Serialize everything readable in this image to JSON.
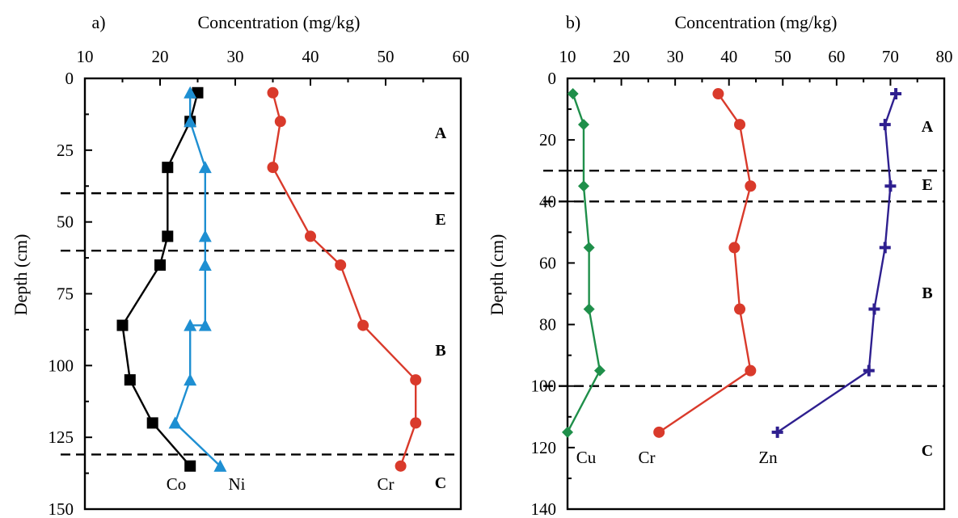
{
  "chart_data": [
    {
      "type": "line",
      "panel_label": "a)",
      "xlabel": "Concentration (mg/kg)",
      "ylabel": "Depth (cm)",
      "xlim": [
        10,
        60
      ],
      "ylim": [
        0,
        150
      ],
      "x_ticks": [
        "10",
        "20",
        "30",
        "40",
        "50",
        "60"
      ],
      "y_ticks": [
        "0",
        "25",
        "50",
        "75",
        "100",
        "125",
        "150"
      ],
      "x_axis_position": "top",
      "y_inverted": true,
      "grid": false,
      "horizon_boundaries": [
        40,
        60,
        131
      ],
      "horizon_labels": [
        "A",
        "E",
        "B",
        "C"
      ],
      "series": [
        {
          "name": "Co",
          "color": "#000000",
          "marker": "square",
          "x": [
            25,
            24,
            21,
            21,
            20,
            15,
            16,
            19,
            24
          ],
          "depth": [
            5,
            15,
            31,
            55,
            65,
            86,
            105,
            120,
            135
          ]
        },
        {
          "name": "Ni",
          "color": "#1e8fd2",
          "marker": "triangle",
          "x": [
            24,
            24,
            26,
            26,
            26,
            26,
            24,
            24,
            22,
            28
          ],
          "depth": [
            5,
            15,
            31,
            55,
            65,
            86,
            86,
            105,
            120,
            135
          ]
        },
        {
          "name": "Cr",
          "color": "#d93a2b",
          "marker": "circle",
          "x": [
            35,
            36,
            35,
            40,
            44,
            47,
            54,
            54,
            52
          ],
          "depth": [
            5,
            15,
            31,
            55,
            65,
            86,
            105,
            120,
            135
          ]
        }
      ]
    },
    {
      "type": "line",
      "panel_label": "b)",
      "xlabel": "Concentration (mg/kg)",
      "ylabel": "Depth (cm)",
      "xlim": [
        10,
        80
      ],
      "ylim": [
        0,
        140
      ],
      "x_ticks": [
        "10",
        "20",
        "30",
        "40",
        "50",
        "60",
        "70",
        "80"
      ],
      "y_ticks": [
        "0",
        "20",
        "40",
        "60",
        "80",
        "100",
        "120",
        "140"
      ],
      "x_axis_position": "top",
      "y_inverted": true,
      "grid": false,
      "horizon_boundaries": [
        30,
        40,
        100
      ],
      "horizon_labels": [
        "A",
        "E",
        "B",
        "C"
      ],
      "series": [
        {
          "name": "Cu",
          "color": "#1f8f4a",
          "marker": "diamond",
          "x": [
            11,
            13,
            13,
            14,
            14,
            16,
            10
          ],
          "depth": [
            5,
            15,
            35,
            55,
            75,
            95,
            115
          ]
        },
        {
          "name": "Cr",
          "color": "#d93a2b",
          "marker": "circle",
          "x": [
            38,
            42,
            44,
            41,
            42,
            44,
            27
          ],
          "depth": [
            5,
            15,
            35,
            55,
            75,
            95,
            115
          ]
        },
        {
          "name": "Zn",
          "color": "#2e1f8f",
          "marker": "cross",
          "x": [
            71,
            69,
            70,
            69,
            67,
            66,
            49
          ],
          "depth": [
            5,
            15,
            35,
            55,
            75,
            95,
            115
          ]
        }
      ]
    }
  ]
}
